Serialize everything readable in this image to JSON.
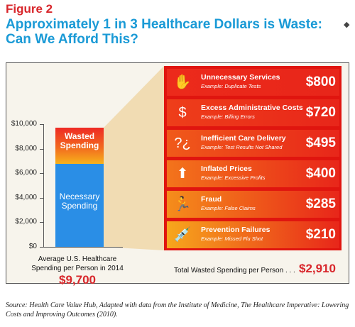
{
  "figure_label": "Figure 2",
  "title_line1": "Approximately 1 in 3 Healthcare Dollars is Waste:",
  "title_line2": "Can We Afford This?",
  "chart_data": {
    "type": "bar",
    "stacked": true,
    "ylim": [
      0,
      10000
    ],
    "y_ticks": [
      "$10,000",
      "$8,000",
      "$6,000",
      "$4,000",
      "$2,000",
      "$0"
    ],
    "y_tick_values": [
      10000,
      8000,
      6000,
      4000,
      2000,
      0
    ],
    "categories": [
      "Average U.S. Healthcare Spending per Person in 2014"
    ],
    "series": [
      {
        "name": "Necessary Spending",
        "values": [
          6790
        ]
      },
      {
        "name": "Wasted Spending",
        "values": [
          2910
        ]
      }
    ],
    "series_labels": {
      "necessary": [
        "Necessary",
        "Spending"
      ],
      "wasted": [
        "Wasted",
        "Spending"
      ]
    },
    "colors": {
      "necessary": "#2a8ee6",
      "wasted": "#ee2a24"
    },
    "bar_label": [
      "Average U.S. Healthcare",
      "Spending per Person in 2014"
    ],
    "bar_total": "$9,700",
    "breakdown": [
      {
        "title": "Unnecessary Services",
        "example": "Example: Duplicate Tests",
        "value": "$800",
        "icon": "xray-icon"
      },
      {
        "title": "Excess Administrative Costs",
        "example": "Example: Billing Errors",
        "value": "$720",
        "icon": "money-bag-icon"
      },
      {
        "title": "Inefficient Care Delivery",
        "example": "Example: Test Results Not Shared",
        "value": "$495",
        "icon": "question-icon"
      },
      {
        "title": "Inflated Prices",
        "example": "Example: Excessive Profits",
        "value": "$400",
        "icon": "arrow-up-icon"
      },
      {
        "title": "Fraud",
        "example": "Example: False Claims",
        "value": "$285",
        "icon": "running-man-icon"
      },
      {
        "title": "Prevention Failures",
        "example": "Example: Missed Flu Shot",
        "value": "$210",
        "icon": "syringe-icon"
      }
    ],
    "total_label": "Total Wasted Spending per Person . . .",
    "total_value": "$2,910"
  },
  "source": "Source:  Health Care Value Hub, Adapted with data from the Institute of Medicine, The Healthcare Imperative: Lowering Costs and Improving Outcomes (2010)."
}
